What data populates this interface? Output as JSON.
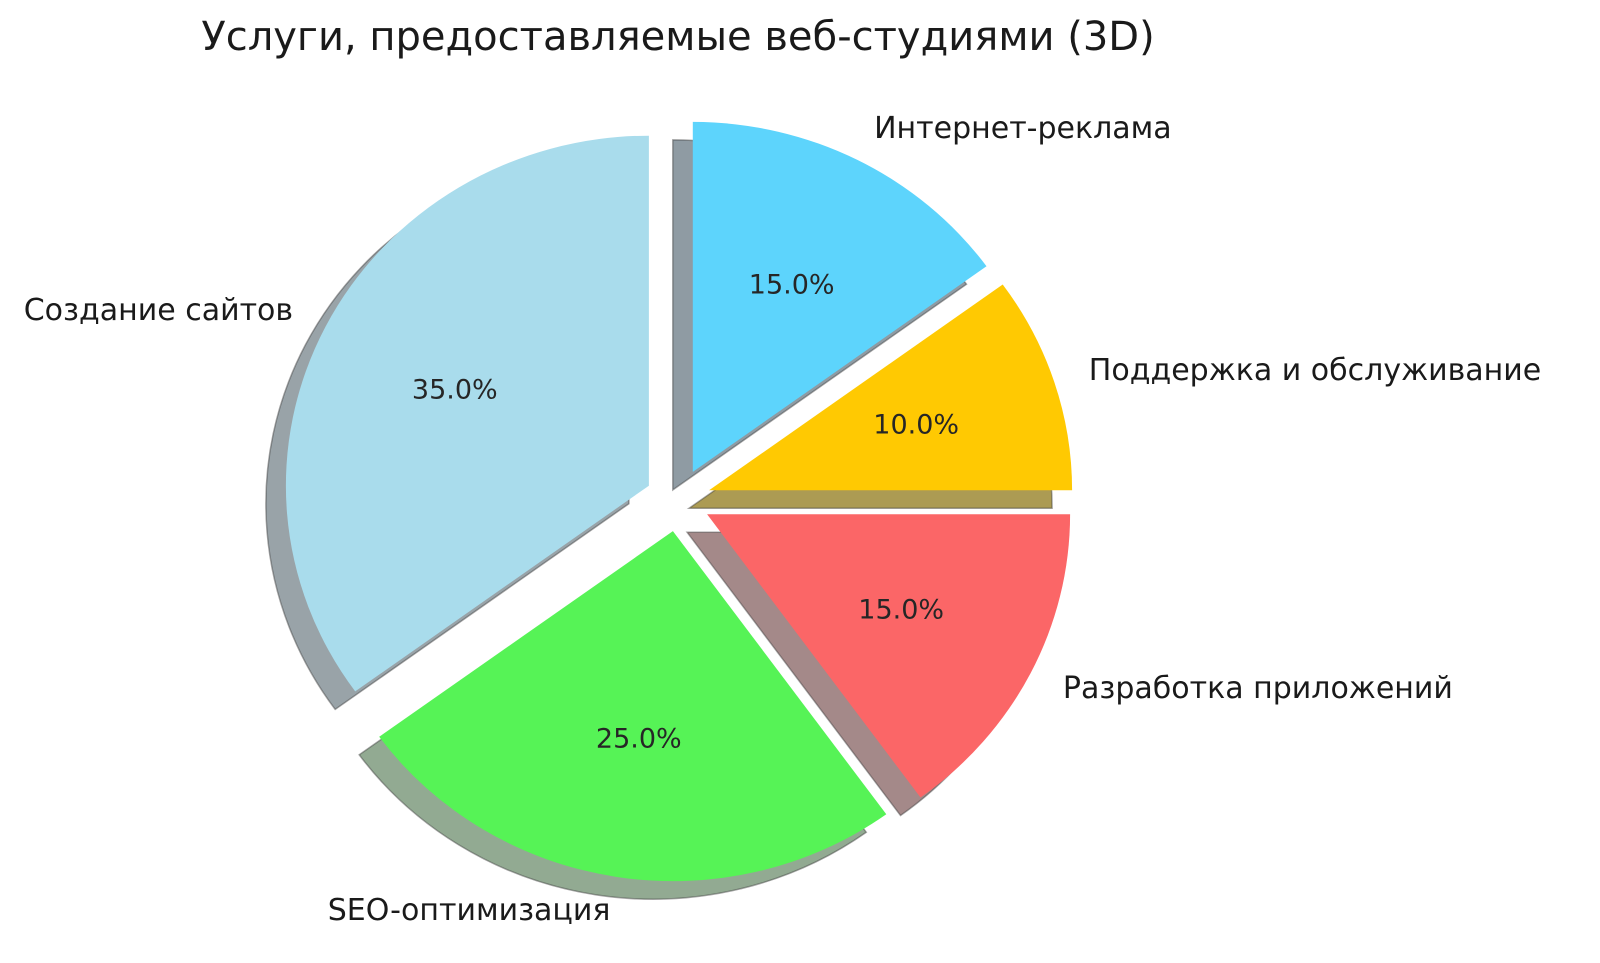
{
  "chart_data": {
    "type": "pie",
    "title": "Услуги, предоставляемые веб-студиями (3D)",
    "categories": [
      "Интернет-реклама",
      "Поддержка и обслуживание",
      "Разработка приложений",
      "SEO-оптимизация",
      "Создание сайтов"
    ],
    "values": [
      15.0,
      10.0,
      15.0,
      25.0,
      35.0
    ],
    "pct_labels": [
      "15.0%",
      "10.0%",
      "15.0%",
      "25.0%",
      "35.0%"
    ],
    "colors": [
      "#5dd4fc",
      "#ffc902",
      "#fb6667",
      "#56f356",
      "#a9dcec"
    ],
    "shadow_colors": [
      "#8f9ba3",
      "#ac9b53",
      "#a48989",
      "#92aa92",
      "#99a3a8"
    ],
    "start_angle_deg": 90,
    "direction": "clockwise",
    "explode": 0.09,
    "shadow": true,
    "legend": "none",
    "background": "#ffffff",
    "text_color": "#1a1a1a"
  }
}
